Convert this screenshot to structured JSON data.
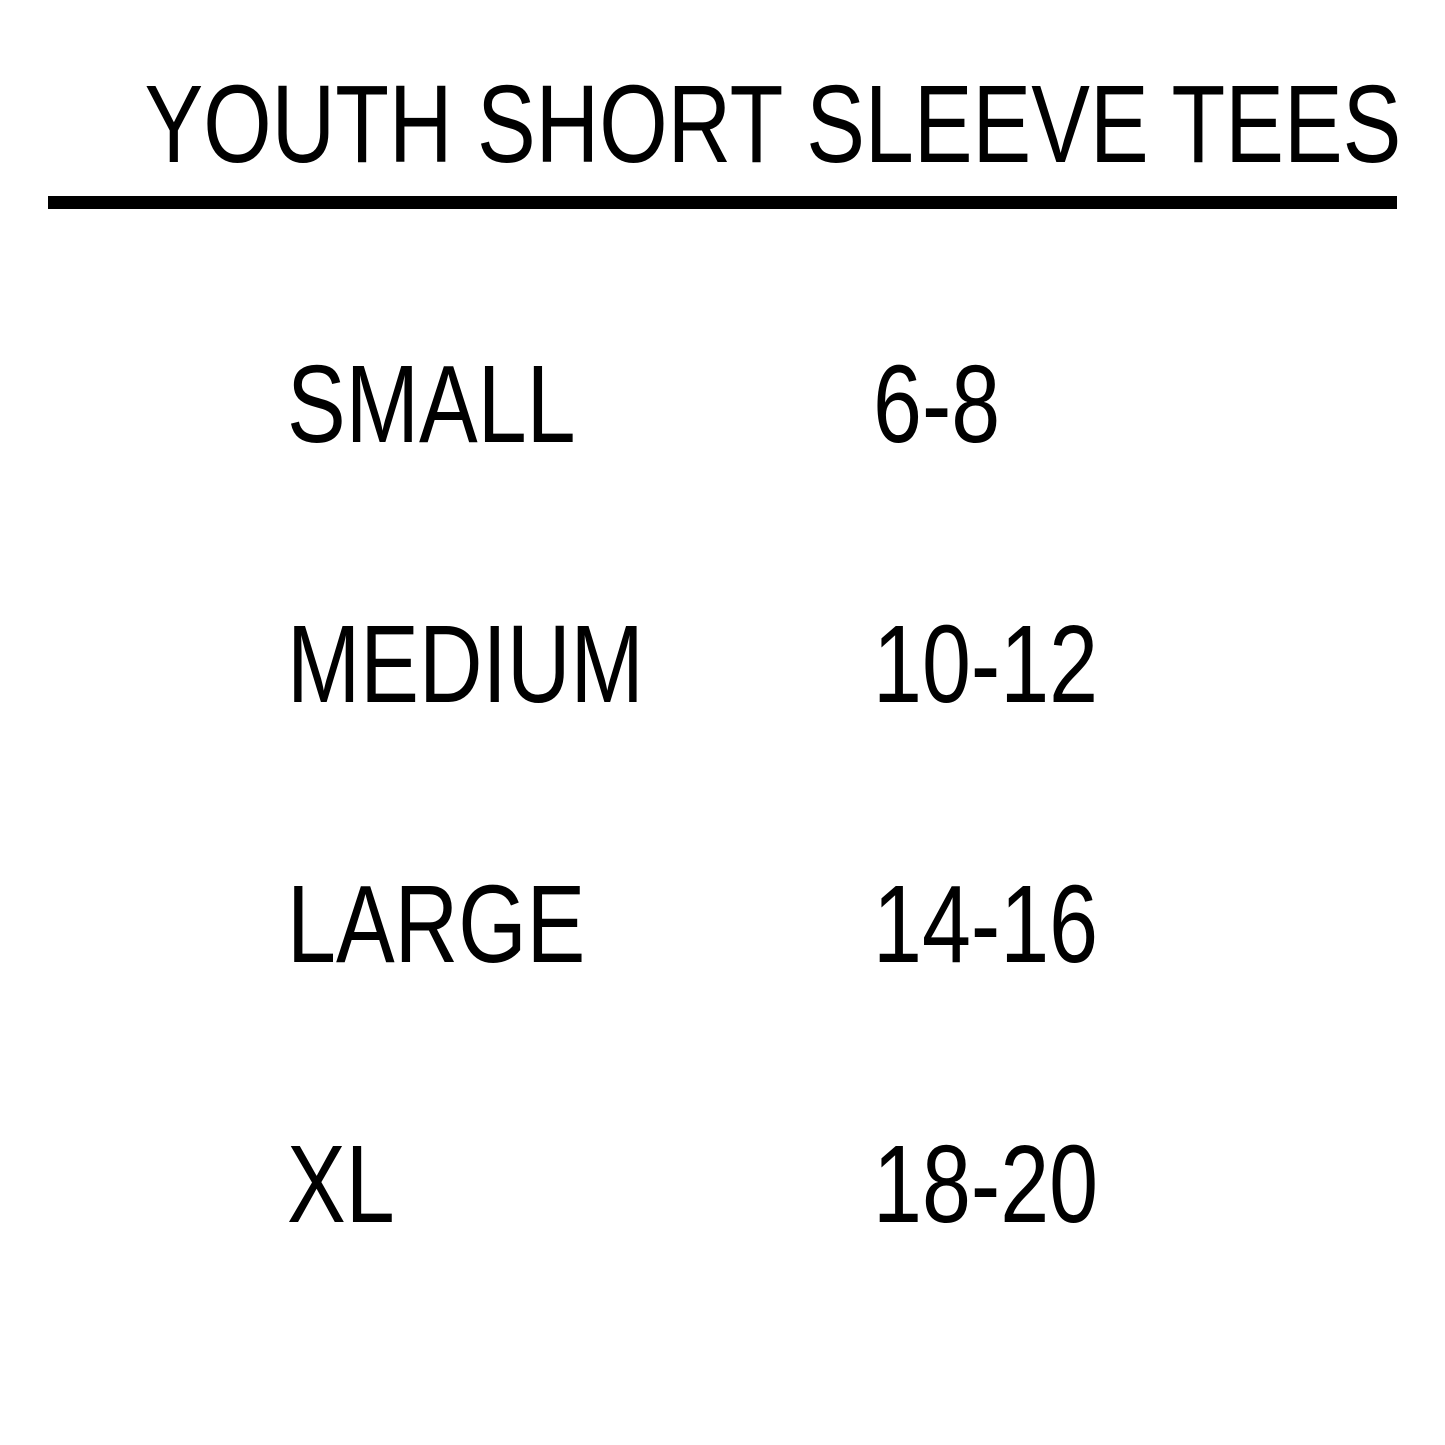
{
  "title": "YOUTH SHORT SLEEVE TEES",
  "rows": [
    {
      "size": "SMALL",
      "range": "6-8"
    },
    {
      "size": "MEDIUM",
      "range": "10-12"
    },
    {
      "size": "LARGE",
      "range": "14-16"
    },
    {
      "size": "XL",
      "range": "18-20"
    }
  ]
}
